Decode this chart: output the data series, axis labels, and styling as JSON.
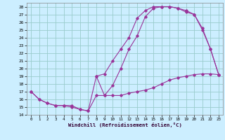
{
  "xlabel": "Windchill (Refroidissement éolien,°C)",
  "bg_color": "#cceeff",
  "grid_color": "#99cccc",
  "line_color": "#993399",
  "xlim": [
    -0.5,
    23.5
  ],
  "ylim": [
    14,
    28.5
  ],
  "xticks": [
    0,
    1,
    2,
    3,
    4,
    5,
    6,
    7,
    8,
    9,
    10,
    11,
    12,
    13,
    14,
    15,
    16,
    17,
    18,
    19,
    20,
    21,
    22,
    23
  ],
  "yticks": [
    14,
    15,
    16,
    17,
    18,
    19,
    20,
    21,
    22,
    23,
    24,
    25,
    26,
    27,
    28
  ],
  "line1_x": [
    0,
    1,
    2,
    3,
    4,
    5,
    6,
    7,
    8,
    9,
    10,
    11,
    12,
    13,
    14,
    15,
    16,
    17,
    18,
    19,
    20,
    21,
    22,
    23
  ],
  "line1_y": [
    17.0,
    16.0,
    15.5,
    15.2,
    15.2,
    15.2,
    14.7,
    14.5,
    16.5,
    16.5,
    16.5,
    16.5,
    16.8,
    17.0,
    17.2,
    17.5,
    18.0,
    18.5,
    18.8,
    19.0,
    19.2,
    19.3,
    19.3,
    19.2
  ],
  "line2_x": [
    0,
    1,
    2,
    3,
    4,
    5,
    6,
    7,
    8,
    9,
    10,
    11,
    12,
    13,
    14,
    15,
    16,
    17,
    18,
    19,
    20,
    21,
    22,
    23
  ],
  "line2_y": [
    17.0,
    16.0,
    15.5,
    15.2,
    15.2,
    15.0,
    14.7,
    14.5,
    19.0,
    16.5,
    17.8,
    20.0,
    22.5,
    24.2,
    26.7,
    27.8,
    28.0,
    28.0,
    27.8,
    27.5,
    27.0,
    25.2,
    22.5,
    19.2
  ],
  "line3_x": [
    8,
    9,
    10,
    11,
    12,
    13,
    14,
    15,
    16,
    17,
    18,
    19,
    20,
    21,
    22,
    23
  ],
  "line3_y": [
    19.0,
    19.3,
    21.0,
    22.5,
    24.0,
    26.5,
    27.5,
    28.0,
    28.0,
    28.0,
    27.8,
    27.3,
    27.0,
    25.0,
    22.5,
    19.2
  ]
}
